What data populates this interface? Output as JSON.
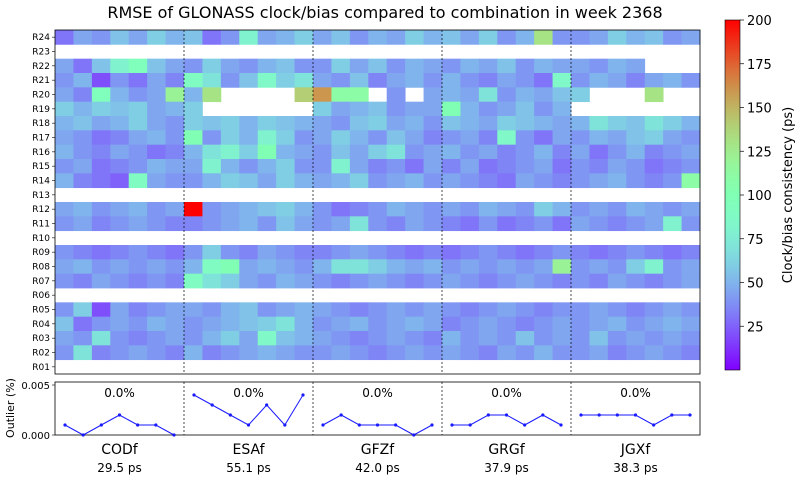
{
  "chart_data": [
    {
      "type": "heatmap",
      "title": "RMSE of GLONASS clock/bias compared to combination in week 2368",
      "rows": [
        "R24",
        "R23",
        "R22",
        "R21",
        "R20",
        "R19",
        "R18",
        "R17",
        "R16",
        "R15",
        "R14",
        "R13",
        "R12",
        "R11",
        "R10",
        "R09",
        "R08",
        "R07",
        "R06",
        "R05",
        "R04",
        "R03",
        "R02",
        "R01"
      ],
      "groups": [
        "CODf",
        "ESAf",
        "GFZf",
        "GRGf",
        "JGXf"
      ],
      "group_rms": [
        "29.5 ps",
        "55.1 ps",
        "42.0 ps",
        "37.9 ps",
        "38.3 ps"
      ],
      "days_per_group": 7,
      "colorbar": {
        "label": "Clock/bias consistency (ps)",
        "range": [
          0,
          200
        ],
        "ticks": [
          25,
          50,
          75,
          100,
          125,
          150,
          175,
          200
        ]
      },
      "values": [
        [
          30,
          45,
          40,
          55,
          45,
          60,
          50,
          55,
          30,
          40,
          80,
          45,
          50,
          60,
          45,
          55,
          40,
          50,
          45,
          60,
          50,
          55,
          45,
          60,
          40,
          50,
          130,
          40,
          40,
          45,
          60,
          50,
          55,
          40,
          45
        ],
        [
          null,
          null,
          null,
          null,
          null,
          null,
          null,
          null,
          null,
          null,
          null,
          null,
          null,
          null,
          null,
          null,
          null,
          null,
          null,
          null,
          null,
          null,
          null,
          null,
          null,
          null,
          null,
          null,
          null,
          null,
          null,
          null,
          null,
          null,
          null
        ],
        [
          45,
          30,
          55,
          80,
          95,
          55,
          45,
          40,
          60,
          45,
          40,
          50,
          55,
          40,
          40,
          60,
          45,
          55,
          40,
          50,
          45,
          40,
          50,
          45,
          55,
          40,
          50,
          45,
          45,
          40,
          50,
          45,
          null,
          null,
          null
        ],
        [
          40,
          50,
          20,
          40,
          30,
          45,
          35,
          90,
          70,
          40,
          55,
          85,
          60,
          70,
          45,
          40,
          55,
          35,
          45,
          50,
          40,
          50,
          40,
          35,
          45,
          40,
          30,
          85,
          40,
          50,
          45,
          35,
          45,
          50,
          40
        ],
        [
          45,
          35,
          95,
          50,
          40,
          45,
          120,
          50,
          130,
          null,
          null,
          null,
          null,
          140,
          160,
          110,
          110,
          null,
          40,
          null,
          45,
          50,
          45,
          70,
          40,
          50,
          45,
          55,
          60,
          null,
          null,
          null,
          130,
          null,
          null
        ],
        [
          60,
          50,
          60,
          55,
          60,
          45,
          50,
          60,
          null,
          null,
          null,
          null,
          null,
          null,
          60,
          45,
          50,
          55,
          40,
          45,
          45,
          100,
          50,
          40,
          45,
          55,
          40,
          50,
          null,
          null,
          null,
          null,
          null,
          null,
          null
        ],
        [
          50,
          55,
          45,
          50,
          60,
          45,
          40,
          60,
          55,
          60,
          50,
          60,
          55,
          50,
          45,
          40,
          55,
          60,
          45,
          50,
          40,
          55,
          50,
          45,
          60,
          55,
          50,
          45,
          50,
          70,
          60,
          55,
          70,
          60,
          50
        ],
        [
          45,
          40,
          30,
          35,
          45,
          50,
          40,
          100,
          40,
          60,
          50,
          80,
          60,
          40,
          45,
          60,
          50,
          40,
          55,
          45,
          35,
          40,
          45,
          35,
          85,
          40,
          30,
          45,
          40,
          50,
          45,
          55,
          60,
          45,
          40
        ],
        [
          50,
          40,
          35,
          45,
          40,
          30,
          35,
          50,
          70,
          80,
          60,
          100,
          50,
          45,
          40,
          55,
          45,
          60,
          70,
          40,
          45,
          50,
          40,
          45,
          35,
          40,
          50,
          35,
          45,
          30,
          40,
          50,
          35,
          40,
          45
        ],
        [
          40,
          45,
          30,
          35,
          40,
          50,
          45,
          45,
          80,
          50,
          40,
          50,
          60,
          40,
          40,
          80,
          45,
          35,
          40,
          30,
          45,
          35,
          45,
          30,
          35,
          40,
          45,
          30,
          40,
          35,
          45,
          40,
          30,
          35,
          40
        ],
        [
          50,
          35,
          30,
          25,
          90,
          45,
          40,
          40,
          50,
          60,
          55,
          45,
          60,
          50,
          45,
          50,
          60,
          40,
          45,
          50,
          40,
          45,
          40,
          35,
          30,
          45,
          40,
          35,
          40,
          45,
          50,
          40,
          35,
          40,
          110
        ],
        [
          null,
          null,
          null,
          null,
          null,
          null,
          null,
          null,
          null,
          null,
          null,
          null,
          null,
          null,
          null,
          null,
          null,
          null,
          null,
          null,
          null,
          null,
          null,
          null,
          null,
          null,
          null,
          null,
          null,
          null,
          null,
          null,
          null,
          null,
          null
        ],
        [
          45,
          50,
          40,
          45,
          50,
          40,
          45,
          200,
          40,
          45,
          50,
          55,
          60,
          50,
          40,
          30,
          35,
          40,
          50,
          45,
          40,
          45,
          40,
          50,
          45,
          40,
          60,
          50,
          40,
          45,
          40,
          50,
          45,
          40,
          45
        ],
        [
          40,
          45,
          35,
          40,
          45,
          40,
          35,
          35,
          40,
          45,
          50,
          40,
          55,
          45,
          40,
          45,
          70,
          40,
          35,
          45,
          40,
          35,
          30,
          40,
          30,
          35,
          40,
          30,
          45,
          40,
          35,
          40,
          45,
          80,
          40
        ],
        [
          null,
          null,
          null,
          null,
          null,
          null,
          null,
          null,
          null,
          null,
          null,
          null,
          null,
          null,
          null,
          null,
          null,
          null,
          null,
          null,
          null,
          null,
          null,
          null,
          null,
          null,
          null,
          null,
          null,
          null,
          null,
          null,
          null,
          null,
          null
        ],
        [
          40,
          35,
          30,
          35,
          40,
          35,
          30,
          40,
          60,
          40,
          35,
          45,
          40,
          35,
          35,
          40,
          45,
          40,
          35,
          30,
          35,
          30,
          35,
          40,
          35,
          30,
          35,
          40,
          35,
          30,
          35,
          40,
          35,
          30,
          35
        ],
        [
          45,
          50,
          40,
          45,
          40,
          45,
          40,
          50,
          90,
          100,
          45,
          50,
          45,
          40,
          50,
          70,
          70,
          60,
          50,
          45,
          50,
          40,
          45,
          40,
          45,
          40,
          45,
          120,
          40,
          45,
          40,
          60,
          80,
          40,
          45
        ],
        [
          40,
          35,
          45,
          40,
          35,
          40,
          35,
          90,
          70,
          60,
          45,
          40,
          50,
          45,
          40,
          35,
          40,
          45,
          40,
          35,
          40,
          45,
          40,
          35,
          40,
          45,
          40,
          35,
          40,
          35,
          45,
          40,
          35,
          40,
          45
        ],
        [
          null,
          null,
          null,
          null,
          null,
          null,
          null,
          null,
          null,
          null,
          null,
          null,
          null,
          null,
          null,
          null,
          null,
          null,
          null,
          null,
          null,
          null,
          null,
          null,
          null,
          null,
          null,
          null,
          null,
          null,
          null,
          null,
          null,
          null,
          null
        ],
        [
          40,
          60,
          20,
          45,
          35,
          40,
          45,
          45,
          40,
          50,
          55,
          40,
          45,
          50,
          45,
          40,
          35,
          40,
          45,
          40,
          45,
          40,
          35,
          40,
          45,
          40,
          35,
          40,
          40,
          45,
          40,
          35,
          40,
          45,
          40
        ],
        [
          55,
          30,
          40,
          45,
          40,
          50,
          45,
          40,
          45,
          50,
          55,
          60,
          70,
          50,
          40,
          45,
          50,
          40,
          45,
          50,
          45,
          35,
          40,
          45,
          40,
          35,
          40,
          45,
          40,
          45,
          50,
          40,
          45,
          50,
          45
        ],
        [
          45,
          40,
          70,
          40,
          35,
          40,
          45,
          40,
          50,
          60,
          45,
          85,
          55,
          50,
          45,
          40,
          35,
          40,
          45,
          40,
          35,
          50,
          40,
          45,
          40,
          55,
          40,
          45,
          40,
          55,
          40,
          45,
          40,
          45,
          40
        ],
        [
          40,
          70,
          35,
          40,
          45,
          40,
          35,
          50,
          35,
          40,
          45,
          50,
          45,
          40,
          40,
          45,
          40,
          35,
          40,
          45,
          40,
          45,
          40,
          35,
          45,
          40,
          50,
          40,
          40,
          45,
          35,
          40,
          45,
          40,
          35
        ],
        [
          null,
          null,
          null,
          null,
          null,
          null,
          null,
          null,
          null,
          null,
          null,
          null,
          null,
          null,
          null,
          null,
          null,
          null,
          null,
          null,
          null,
          null,
          null,
          null,
          null,
          null,
          null,
          null,
          null,
          null,
          null,
          null,
          null,
          null,
          null
        ]
      ]
    },
    {
      "type": "line",
      "ylabel": "Outlier (%)",
      "ylim": [
        0,
        0.005
      ],
      "yticks": [
        "0.000",
        "0.005"
      ],
      "series": [
        {
          "group": "CODf",
          "percent": "0.0%",
          "values": [
            0.001,
            0.0,
            0.001,
            0.002,
            0.001,
            0.001,
            0.0
          ]
        },
        {
          "group": "ESAf",
          "percent": "0.0%",
          "values": [
            0.004,
            0.003,
            0.002,
            0.001,
            0.003,
            0.001,
            0.004
          ]
        },
        {
          "group": "GFZf",
          "percent": "0.0%",
          "values": [
            0.001,
            0.002,
            0.001,
            0.001,
            0.001,
            0.0,
            0.001
          ]
        },
        {
          "group": "GRGf",
          "percent": "0.0%",
          "values": [
            0.001,
            0.001,
            0.002,
            0.002,
            0.001,
            0.002,
            0.001
          ]
        },
        {
          "group": "JGXf",
          "percent": "0.0%",
          "values": [
            0.002,
            0.002,
            0.002,
            0.002,
            0.001,
            0.002,
            0.002
          ]
        }
      ],
      "line_color": "#1a1aff"
    }
  ]
}
